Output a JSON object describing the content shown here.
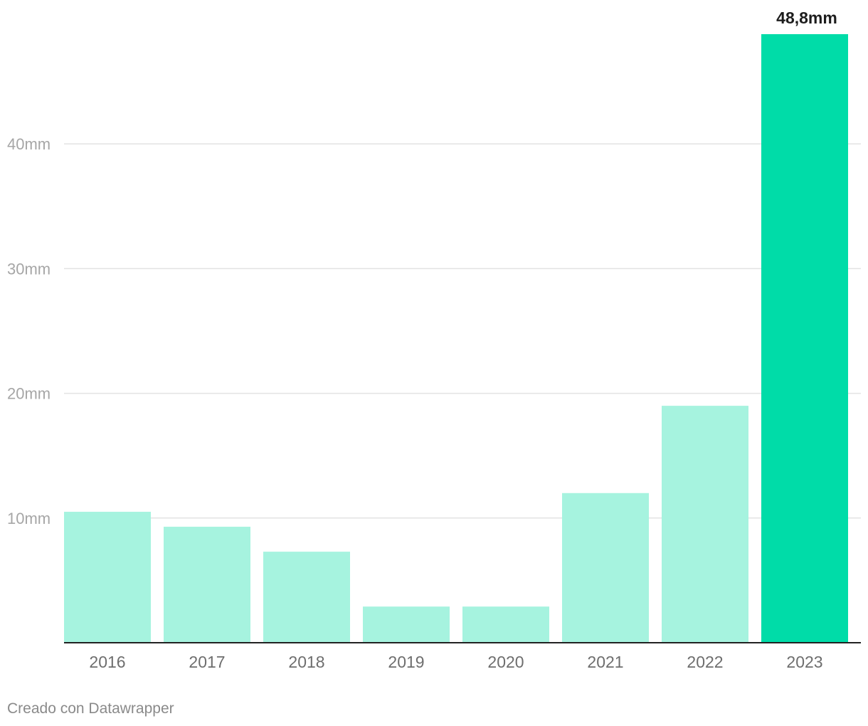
{
  "chart_data": {
    "type": "bar",
    "categories": [
      "2016",
      "2017",
      "2018",
      "2019",
      "2020",
      "2021",
      "2022",
      "2023"
    ],
    "values": [
      10.5,
      9.3,
      7.3,
      2.9,
      2.9,
      12.0,
      19.0,
      48.8
    ],
    "title": "",
    "xlabel": "",
    "ylabel": "",
    "ylim": [
      0,
      48.8
    ],
    "yticks": [
      10,
      20,
      30,
      40
    ],
    "ytick_labels": [
      "10mm",
      "20mm",
      "30mm",
      "40mm"
    ],
    "grid": true,
    "highlight_index": 7,
    "highlight_label": "48,8mm",
    "colors": {
      "bar": "#a6f3df",
      "highlight": "#00dca8",
      "grid": "#e3e3e3",
      "baseline": "#222222"
    }
  },
  "footer": {
    "credit": "Creado con Datawrapper"
  }
}
